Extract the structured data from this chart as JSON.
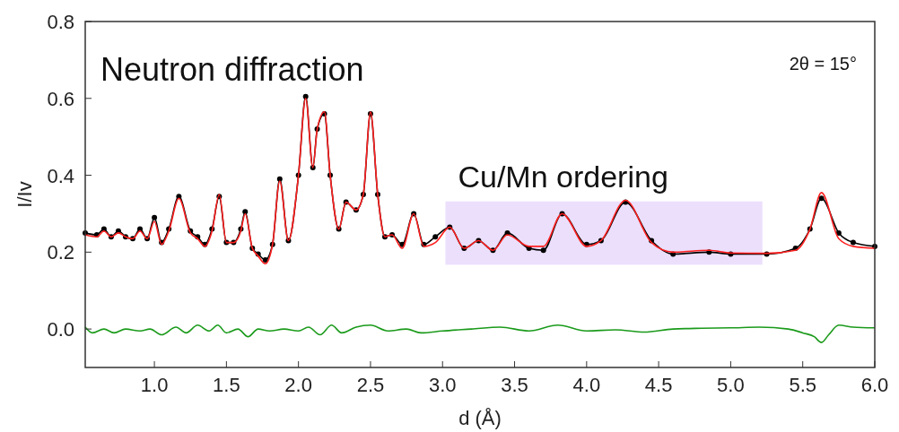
{
  "chart_data": {
    "type": "line",
    "xlabel": "d (Å)",
    "ylabel": "I/Iv",
    "xlim": [
      0.52,
      6.0
    ],
    "ylim": [
      -0.1,
      0.8
    ],
    "xticks": [
      {
        "value": 1,
        "label": "1.0"
      },
      1.5,
      {
        "value": 2,
        "label": "2.0"
      },
      2.5,
      {
        "value": 3,
        "label": "3.0"
      },
      3.5,
      {
        "value": 4,
        "label": "4.0"
      },
      4.5,
      {
        "value": 5,
        "label": "5.0"
      },
      5.5,
      {
        "value": 6,
        "label": "6.0"
      }
    ],
    "yticks": [
      {
        "value": 0,
        "label": "0.0"
      },
      0.2,
      0.4,
      0.6,
      0.8
    ],
    "annotations": [
      "Neutron diffraction",
      "2θ = 15°"
    ],
    "bands": [
      {
        "axis": "x",
        "from": 3.02,
        "to": 5.22,
        "label": "Cu/Mn ordering",
        "color": "#ebdffc"
      }
    ],
    "series": [
      {
        "color": "#ff2020",
        "marker": "none",
        "x": [
          0.52,
          0.6,
          0.65,
          0.7,
          0.75,
          0.8,
          0.85,
          0.9,
          0.95,
          1.0,
          1.05,
          1.1,
          1.17,
          1.25,
          1.3,
          1.35,
          1.4,
          1.45,
          1.5,
          1.55,
          1.6,
          1.63,
          1.68,
          1.72,
          1.77,
          1.82,
          1.87,
          1.93,
          2.0,
          2.05,
          2.1,
          2.13,
          2.18,
          2.22,
          2.28,
          2.33,
          2.4,
          2.45,
          2.5,
          2.55,
          2.6,
          2.65,
          2.72,
          2.8,
          2.87,
          2.95,
          3.05,
          3.15,
          3.25,
          3.35,
          3.45,
          3.6,
          3.7,
          3.83,
          4.0,
          4.1,
          4.27,
          4.45,
          4.6,
          4.85,
          5.0,
          5.25,
          5.45,
          5.55,
          5.63,
          5.75,
          5.85,
          6.0
        ],
        "values": [
          0.245,
          0.24,
          0.255,
          0.24,
          0.25,
          0.24,
          0.235,
          0.255,
          0.235,
          0.28,
          0.22,
          0.255,
          0.34,
          0.25,
          0.235,
          0.215,
          0.255,
          0.35,
          0.225,
          0.225,
          0.255,
          0.3,
          0.21,
          0.19,
          0.17,
          0.22,
          0.385,
          0.23,
          0.4,
          0.6,
          0.42,
          0.52,
          0.565,
          0.4,
          0.26,
          0.33,
          0.31,
          0.35,
          0.565,
          0.35,
          0.24,
          0.245,
          0.21,
          0.3,
          0.215,
          0.225,
          0.265,
          0.21,
          0.23,
          0.205,
          0.245,
          0.215,
          0.215,
          0.3,
          0.215,
          0.23,
          0.335,
          0.225,
          0.2,
          0.205,
          0.198,
          0.197,
          0.205,
          0.26,
          0.355,
          0.235,
          0.215,
          0.21
        ]
      },
      {
        "color": "#000000",
        "marker": "circle",
        "x": [
          0.52,
          0.6,
          0.65,
          0.7,
          0.75,
          0.8,
          0.85,
          0.9,
          0.95,
          1.0,
          1.05,
          1.1,
          1.17,
          1.25,
          1.3,
          1.35,
          1.4,
          1.45,
          1.5,
          1.55,
          1.6,
          1.63,
          1.68,
          1.72,
          1.77,
          1.82,
          1.87,
          1.93,
          2.0,
          2.05,
          2.1,
          2.13,
          2.18,
          2.22,
          2.28,
          2.33,
          2.4,
          2.45,
          2.5,
          2.55,
          2.6,
          2.65,
          2.72,
          2.8,
          2.87,
          2.95,
          3.05,
          3.15,
          3.25,
          3.35,
          3.45,
          3.6,
          3.7,
          3.83,
          4.0,
          4.1,
          4.27,
          4.45,
          4.6,
          4.85,
          5.0,
          5.25,
          5.45,
          5.55,
          5.63,
          5.75,
          5.85,
          6.0
        ],
        "values": [
          0.25,
          0.245,
          0.26,
          0.24,
          0.255,
          0.24,
          0.235,
          0.26,
          0.235,
          0.29,
          0.225,
          0.26,
          0.345,
          0.255,
          0.24,
          0.22,
          0.26,
          0.345,
          0.225,
          0.225,
          0.26,
          0.305,
          0.21,
          0.195,
          0.18,
          0.22,
          0.39,
          0.23,
          0.4,
          0.605,
          0.42,
          0.52,
          0.56,
          0.4,
          0.26,
          0.33,
          0.31,
          0.35,
          0.56,
          0.35,
          0.24,
          0.245,
          0.22,
          0.3,
          0.22,
          0.24,
          0.265,
          0.21,
          0.23,
          0.205,
          0.25,
          0.21,
          0.205,
          0.3,
          0.22,
          0.23,
          0.33,
          0.23,
          0.195,
          0.2,
          0.195,
          0.195,
          0.21,
          0.26,
          0.34,
          0.25,
          0.225,
          0.215
        ]
      },
      {
        "color": "#1a9a1a",
        "marker": "none",
        "x": [
          0.52,
          0.57,
          0.65,
          0.72,
          0.8,
          0.9,
          0.97,
          1.05,
          1.15,
          1.22,
          1.3,
          1.38,
          1.44,
          1.5,
          1.58,
          1.65,
          1.72,
          1.8,
          1.9,
          2.0,
          2.07,
          2.15,
          2.23,
          2.3,
          2.4,
          2.5,
          2.62,
          2.75,
          2.85,
          3.0,
          3.2,
          3.4,
          3.6,
          3.8,
          4.0,
          4.2,
          4.4,
          4.6,
          4.8,
          5.0,
          5.2,
          5.4,
          5.5,
          5.58,
          5.63,
          5.68,
          5.75,
          5.85,
          6.0
        ],
        "values": [
          0.005,
          -0.01,
          0.0,
          -0.01,
          0.0,
          -0.005,
          0.0,
          -0.015,
          0.005,
          -0.01,
          0.01,
          -0.005,
          0.01,
          -0.01,
          0.0,
          -0.02,
          0.0,
          -0.005,
          0.0,
          -0.005,
          0.005,
          -0.015,
          0.01,
          -0.01,
          0.005,
          0.01,
          -0.005,
          0.0,
          -0.01,
          -0.005,
          0.0,
          0.005,
          -0.005,
          0.01,
          -0.005,
          -0.002,
          -0.008,
          0.0,
          0.002,
          0.003,
          0.005,
          0.0,
          -0.01,
          -0.02,
          -0.035,
          -0.015,
          0.01,
          0.005,
          0.003
        ]
      }
    ]
  }
}
